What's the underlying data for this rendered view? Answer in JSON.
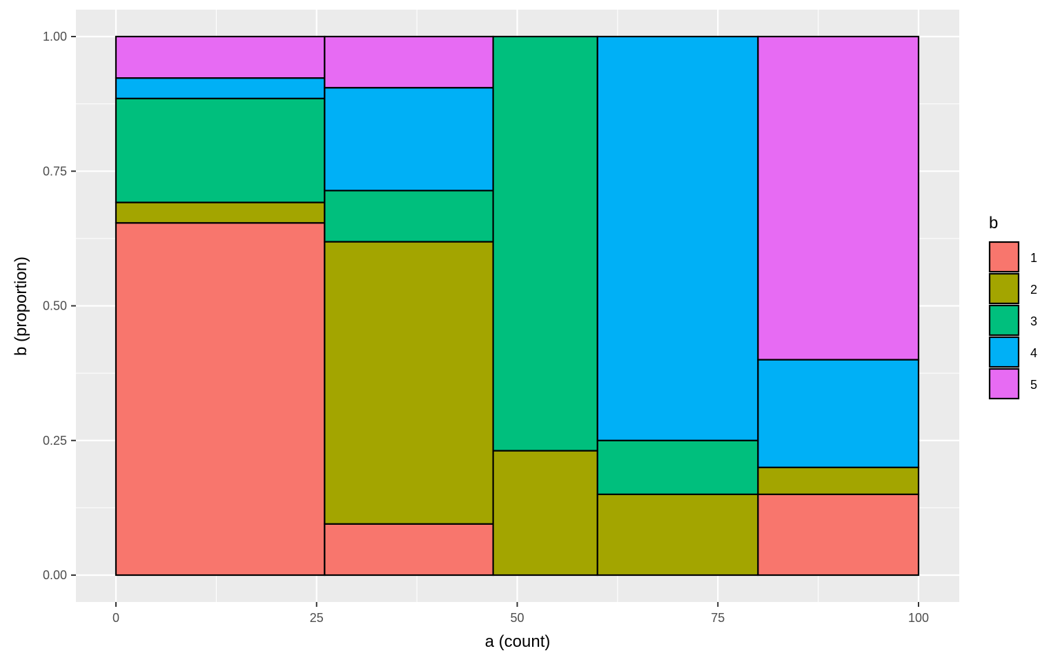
{
  "chart_data": {
    "type": "mosaic",
    "xlabel": "a (count)",
    "ylabel": "b (proportion)",
    "xlim": [
      0,
      100
    ],
    "ylim": [
      0,
      1
    ],
    "x_ticks": [
      "0",
      "25",
      "50",
      "75",
      "100"
    ],
    "y_ticks": [
      "0.00",
      "0.25",
      "0.50",
      "0.75",
      "1.00"
    ],
    "grid": true,
    "legend_position": "right",
    "legend_title": "b",
    "categories": [
      "1",
      "2",
      "3",
      "4",
      "5"
    ],
    "colors": [
      "#F8766D",
      "#A3A500",
      "#00BF7D",
      "#00B0F6",
      "#E76BF3"
    ],
    "columns": [
      {
        "x_start": 0,
        "x_end": 26,
        "segments": [
          {
            "b": "1",
            "start": 0.0,
            "end": 0.654
          },
          {
            "b": "2",
            "start": 0.654,
            "end": 0.692
          },
          {
            "b": "3",
            "start": 0.692,
            "end": 0.885
          },
          {
            "b": "4",
            "start": 0.885,
            "end": 0.923
          },
          {
            "b": "5",
            "start": 0.923,
            "end": 1.0
          }
        ]
      },
      {
        "x_start": 26,
        "x_end": 47,
        "segments": [
          {
            "b": "1",
            "start": 0.0,
            "end": 0.095
          },
          {
            "b": "2",
            "start": 0.095,
            "end": 0.619
          },
          {
            "b": "3",
            "start": 0.619,
            "end": 0.714
          },
          {
            "b": "4",
            "start": 0.714,
            "end": 0.905
          },
          {
            "b": "5",
            "start": 0.905,
            "end": 1.0
          }
        ]
      },
      {
        "x_start": 47,
        "x_end": 60,
        "segments": [
          {
            "b": "2",
            "start": 0.0,
            "end": 0.231
          },
          {
            "b": "3",
            "start": 0.231,
            "end": 1.0
          }
        ]
      },
      {
        "x_start": 60,
        "x_end": 80,
        "segments": [
          {
            "b": "2",
            "start": 0.0,
            "end": 0.15
          },
          {
            "b": "3",
            "start": 0.15,
            "end": 0.25
          },
          {
            "b": "4",
            "start": 0.25,
            "end": 1.0
          }
        ]
      },
      {
        "x_start": 80,
        "x_end": 100,
        "segments": [
          {
            "b": "1",
            "start": 0.0,
            "end": 0.15
          },
          {
            "b": "2",
            "start": 0.15,
            "end": 0.2
          },
          {
            "b": "4",
            "start": 0.2,
            "end": 0.4
          },
          {
            "b": "5",
            "start": 0.4,
            "end": 1.0
          }
        ]
      }
    ]
  }
}
